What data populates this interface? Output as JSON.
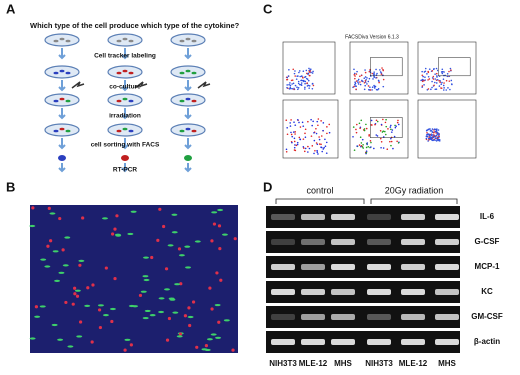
{
  "panel_a": {
    "label": "A",
    "question": "Which type of the cell produce which type of the cytokine?",
    "steps": [
      "Cell tracker labeling",
      "co-culture",
      "irradiation",
      "cell sorting with FACS",
      "RT-PCR"
    ]
  },
  "panel_b": {
    "label": "B"
  },
  "panel_c": {
    "label": "C",
    "software": "FACSDiva Version 6.1.3"
  },
  "panel_d": {
    "label": "D",
    "groups": [
      "control",
      "20Gy radiation"
    ],
    "genes": [
      "IL-6",
      "G-CSF",
      "MCP-1",
      "KC",
      "GM-CSF",
      "β-actin"
    ],
    "lanes": [
      "NIH3T3",
      "MLE-12",
      "MHS",
      "NIH3T3",
      "MLE-12",
      "MHS"
    ]
  }
}
